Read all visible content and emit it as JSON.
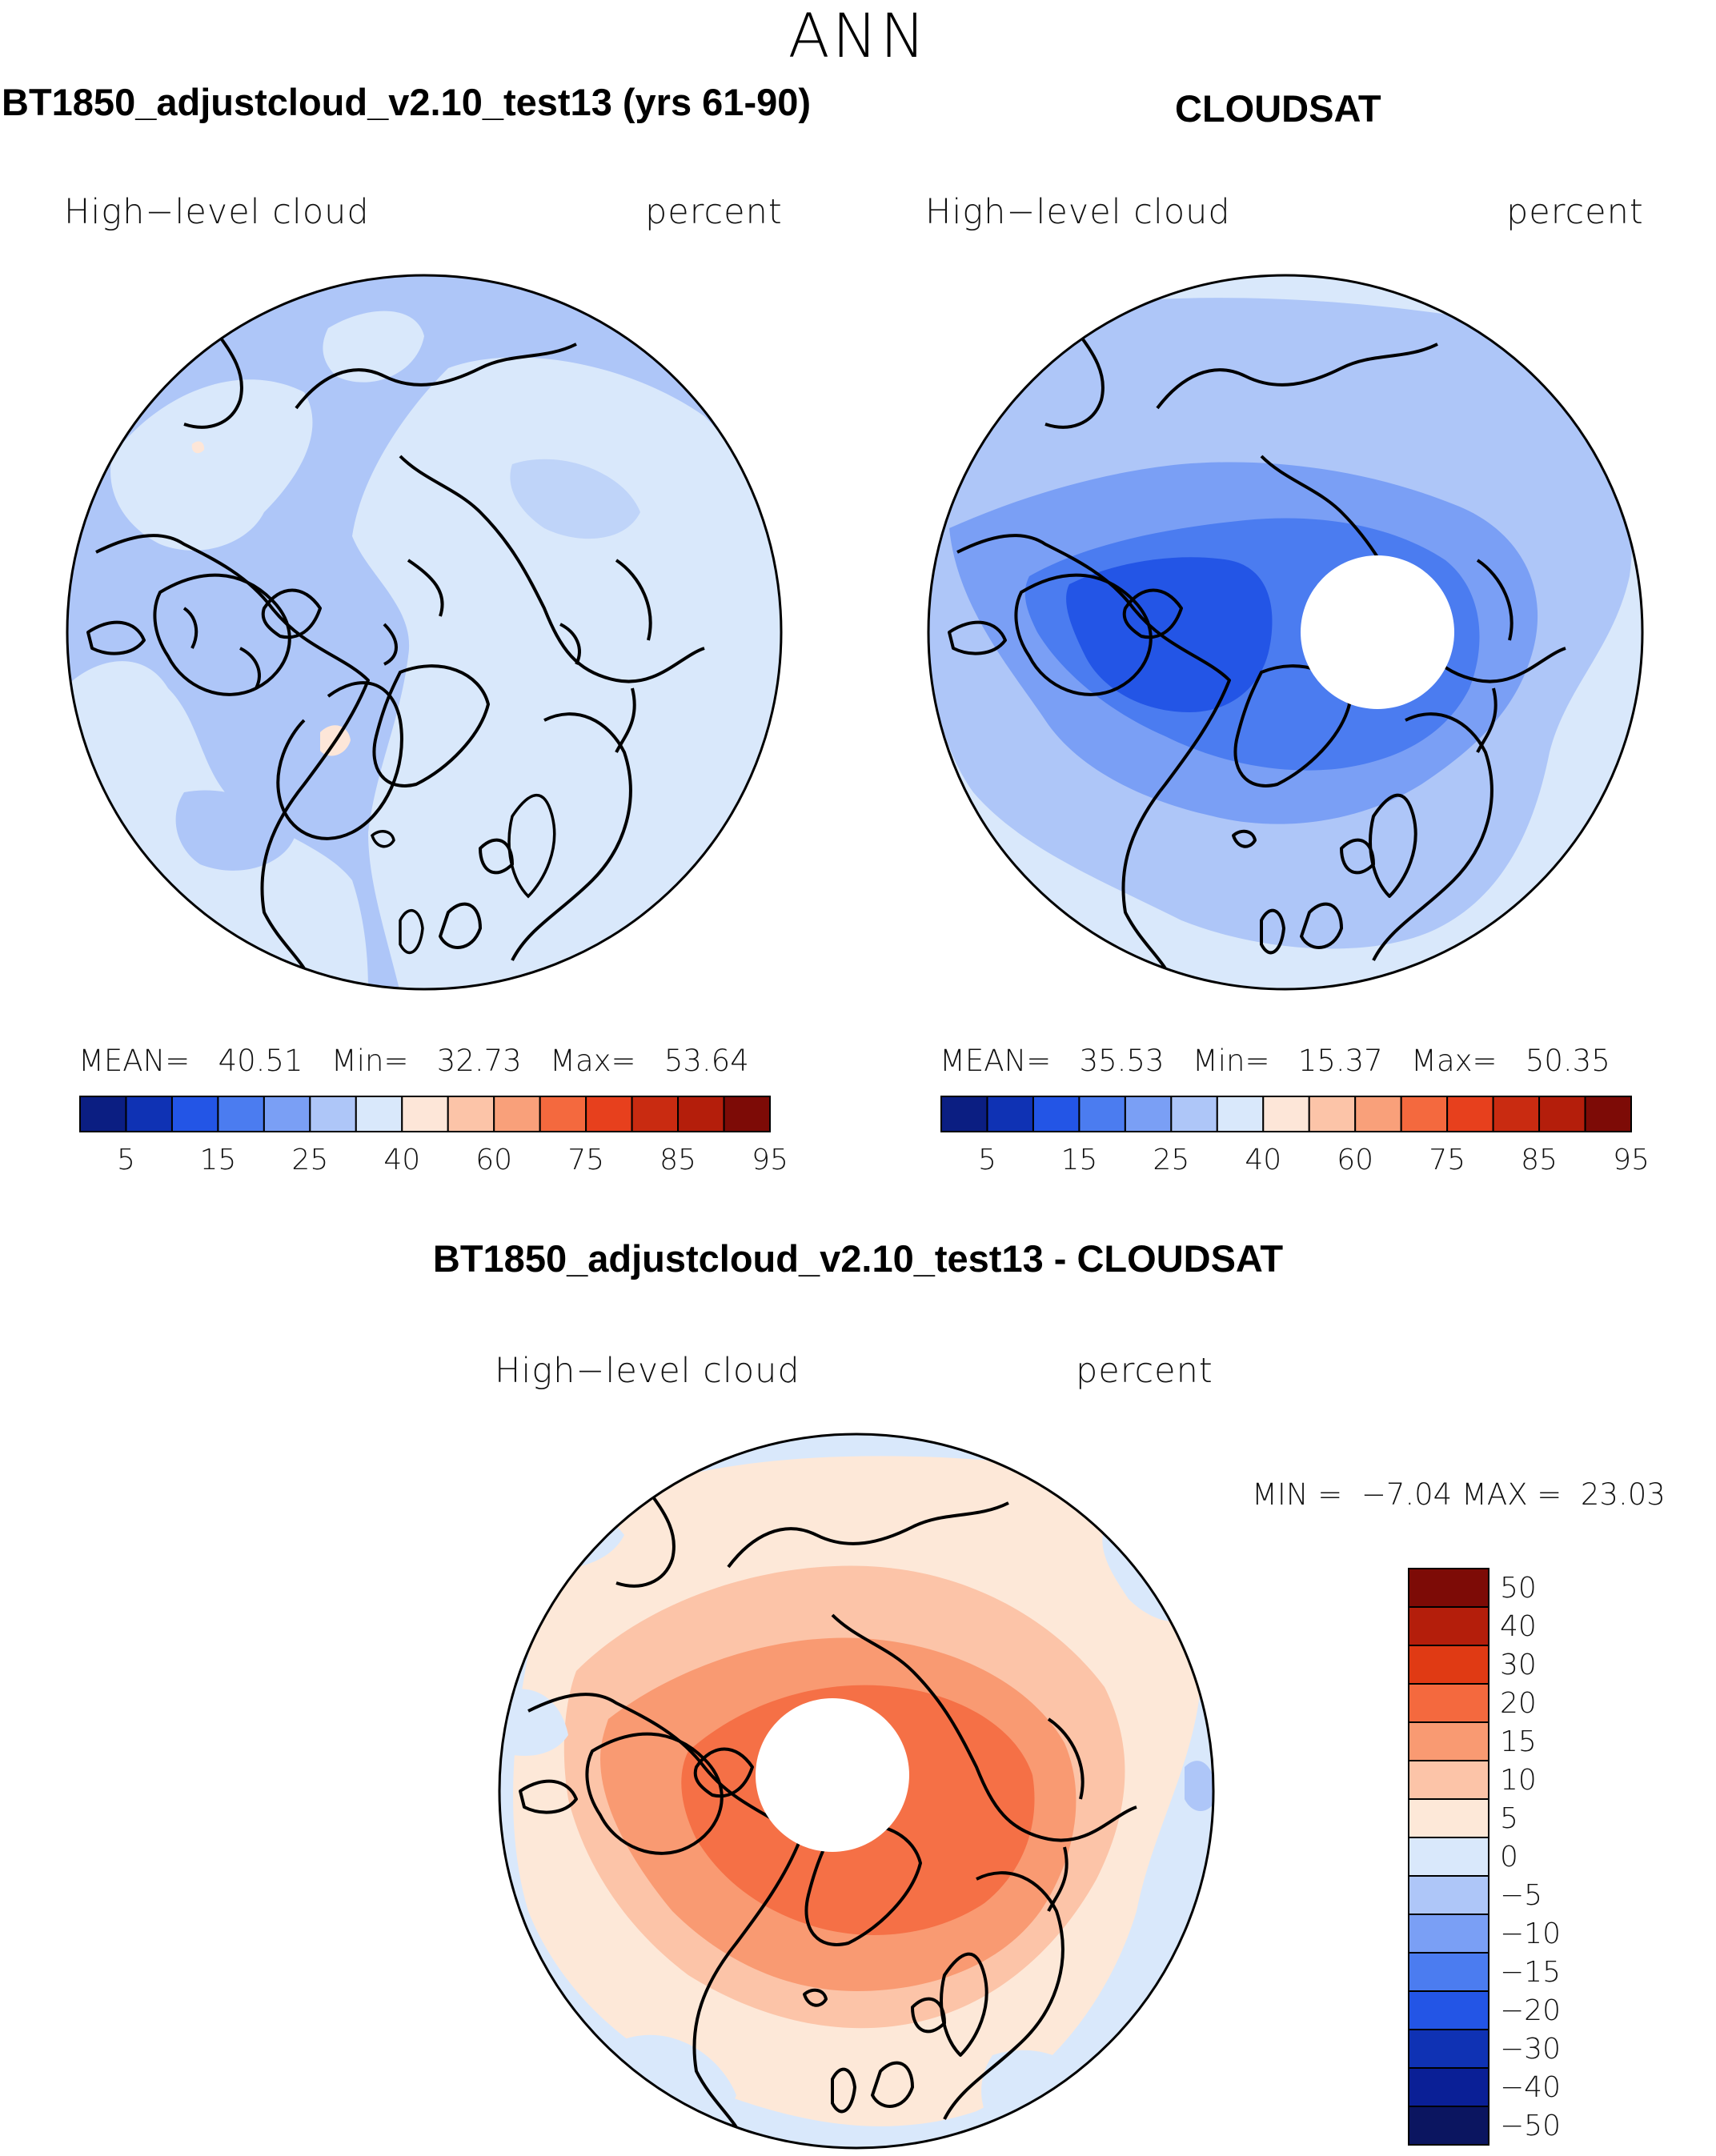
{
  "figure": {
    "season": "ANN"
  },
  "panels": [
    {
      "title": "BT1850_adjustcloud_v2.10_test13 (yrs 61-90)",
      "variable": "High−level cloud",
      "units": "percent",
      "stats": {
        "mean_label": "MEAN=",
        "mean": "40.51",
        "min_label": "Min=",
        "min": "32.73",
        "max_label": "Max=",
        "max": "53.64"
      }
    },
    {
      "title": "CLOUDSAT",
      "variable": "High−level cloud",
      "units": "percent",
      "stats": {
        "mean_label": "MEAN=",
        "mean": "35.53",
        "min_label": "Min=",
        "min": "15.37",
        "max_label": "Max=",
        "max": "50.35"
      }
    },
    {
      "title": "BT1850_adjustcloud_v2.10_test13 - CLOUDSAT",
      "variable": "High−level cloud",
      "units": "percent",
      "stats": {
        "min_label": "MIN =",
        "min": "−7.04",
        "max_label": "MAX =",
        "max": "23.03"
      }
    }
  ],
  "chart_data": [
    {
      "type": "map",
      "projection": "north polar stereographic",
      "title": "BT1850_adjustcloud_v2.10_test13 (yrs 61-90)",
      "field": "High-level cloud (percent)",
      "colorbar": {
        "orientation": "horizontal",
        "colors": [
          "#0b1e82",
          "#0f32b4",
          "#2355e6",
          "#4b7cf0",
          "#7a9ff5",
          "#aec6f8",
          "#d9e8fb",
          "#fde6d8",
          "#fcc4a8",
          "#f9a07a",
          "#f4693e",
          "#e7401d",
          "#c92b11",
          "#b41e0b",
          "#7d0b06"
        ],
        "tick_labels": [
          "5",
          "15",
          "25",
          "40",
          "60",
          "75",
          "85",
          "95"
        ]
      }
    },
    {
      "type": "map",
      "projection": "north polar stereographic",
      "title": "CLOUDSAT",
      "field": "High-level cloud (percent)",
      "missing_region": "polar cap (no data)",
      "colorbar": {
        "orientation": "horizontal",
        "colors": [
          "#0b1e82",
          "#0f32b4",
          "#2355e6",
          "#4b7cf0",
          "#7a9ff5",
          "#aec6f8",
          "#d9e8fb",
          "#fde6d8",
          "#fcc4a8",
          "#f9a07a",
          "#f4693e",
          "#e7401d",
          "#c92b11",
          "#b41e0b",
          "#7d0b06"
        ],
        "tick_labels": [
          "5",
          "15",
          "25",
          "40",
          "60",
          "75",
          "85",
          "95"
        ]
      }
    },
    {
      "type": "map",
      "projection": "north polar stereographic",
      "title": "BT1850_adjustcloud_v2.10_test13 - CLOUDSAT",
      "field": "High-level cloud difference (percent)",
      "colorbar": {
        "orientation": "vertical",
        "colors_top_to_bottom": [
          "#7d0b06",
          "#b41e0b",
          "#e03a14",
          "#f4693e",
          "#f99a72",
          "#fcc4a8",
          "#fde8d8",
          "#d9e8fb",
          "#aec6f8",
          "#7a9ff5",
          "#4b7cf0",
          "#2355e6",
          "#0f32b4",
          "#0a1f96",
          "#0b1560"
        ],
        "tick_labels_top_to_bottom": [
          "50",
          "40",
          "30",
          "20",
          "15",
          "10",
          "5",
          "0",
          "−5",
          "−10",
          "−15",
          "−20",
          "−30",
          "−40",
          "−50"
        ]
      }
    }
  ]
}
